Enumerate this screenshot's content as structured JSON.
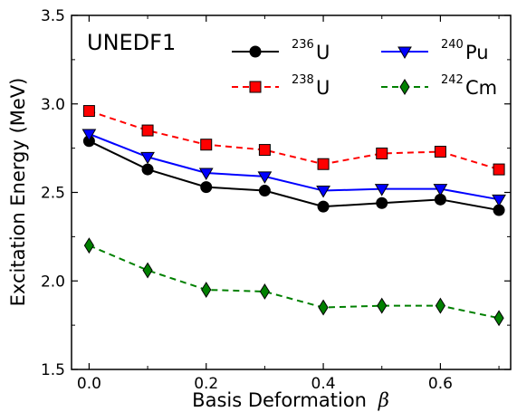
{
  "chart_data": {
    "type": "line",
    "annotation": "UNEDF1",
    "xlabel": "Basis Deformation",
    "xlabel_symbol": "β",
    "ylabel": "Excitation Energy (MeV)",
    "xlim": [
      -0.03,
      0.72
    ],
    "ylim": [
      1.5,
      3.5
    ],
    "xticks": [
      0.0,
      0.2,
      0.4,
      0.6
    ],
    "xtick_labels": [
      "0.0",
      "0.2",
      "0.4",
      "0.6"
    ],
    "yticks": [
      1.5,
      2.0,
      2.5,
      3.0,
      3.5
    ],
    "ytick_labels": [
      "1.5",
      "2.0",
      "2.5",
      "3.0",
      "3.5"
    ],
    "x": [
      0.0,
      0.1,
      0.2,
      0.3,
      0.4,
      0.5,
      0.6,
      0.7
    ],
    "grid": false,
    "legend_position": "top-right",
    "series": [
      {
        "mass": "236",
        "element": "U",
        "color": "#000000",
        "marker": "circle",
        "linestyle": "solid",
        "values": [
          2.79,
          2.63,
          2.53,
          2.51,
          2.42,
          2.44,
          2.46,
          2.4
        ]
      },
      {
        "mass": "240",
        "element": "Pu",
        "color": "#0000ff",
        "marker": "triangle-down",
        "linestyle": "solid",
        "values": [
          2.83,
          2.7,
          2.61,
          2.59,
          2.51,
          2.52,
          2.52,
          2.46
        ]
      },
      {
        "mass": "238",
        "element": "U",
        "color": "#ff0000",
        "marker": "square",
        "linestyle": "dashed",
        "values": [
          2.96,
          2.85,
          2.77,
          2.74,
          2.66,
          2.72,
          2.73,
          2.63
        ]
      },
      {
        "mass": "242",
        "element": "Cm",
        "color": "#008000",
        "marker": "diamond",
        "linestyle": "dashed",
        "values": [
          2.2,
          2.06,
          1.95,
          1.94,
          1.85,
          1.86,
          1.86,
          1.79
        ]
      }
    ]
  }
}
